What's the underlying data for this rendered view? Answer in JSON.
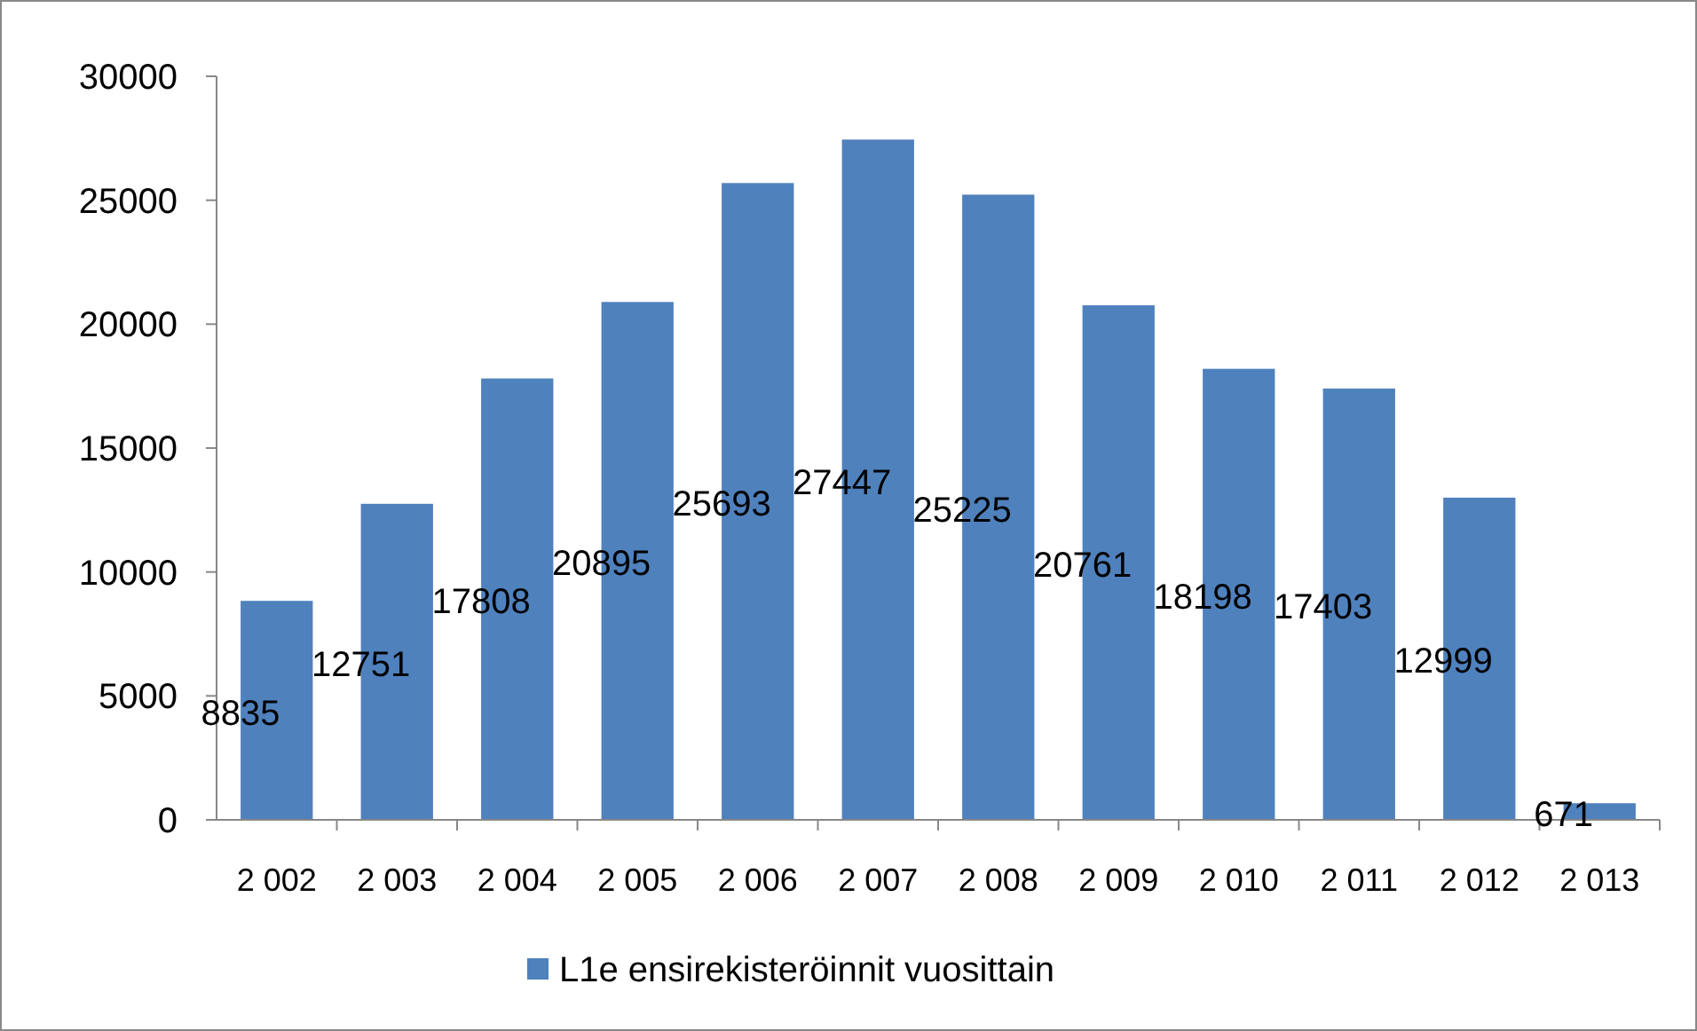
{
  "chart_data": {
    "type": "bar",
    "categories": [
      "2 002",
      "2 003",
      "2 004",
      "2 005",
      "2 006",
      "2 007",
      "2 008",
      "2 009",
      "2 010",
      "2 011",
      "2 012",
      "2 013"
    ],
    "series": [
      {
        "name": "L1e ensirekisteröinnit vuosittain",
        "color": "#4f81bd",
        "values": [
          8835,
          12751,
          17808,
          20895,
          25693,
          27447,
          25225,
          20761,
          18198,
          17403,
          12999,
          671
        ]
      }
    ],
    "ylim": [
      0,
      30000
    ],
    "yticks": [
      0,
      5000,
      10000,
      15000,
      20000,
      25000,
      30000
    ],
    "data_labels": true,
    "legend": "bottom",
    "grid": false
  }
}
